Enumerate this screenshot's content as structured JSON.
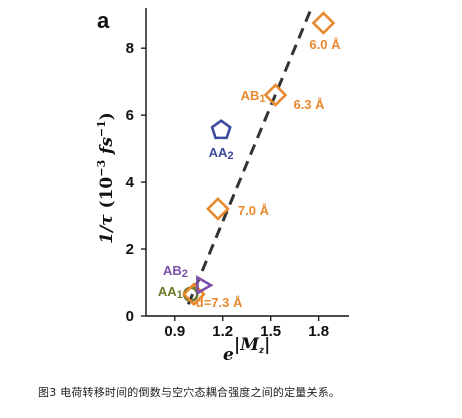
{
  "figure": {
    "panel_letter": "a",
    "caption": "图3 电荷转移时间的倒数与空穴态耦合强度之间的定量关系。"
  },
  "chart_data": {
    "type": "scatter",
    "xlabel": "e^|Mz|",
    "ylabel": "1/τ (10^-3 fs^-1)",
    "xlim": [
      0.72,
      1.99
    ],
    "ylim": [
      0,
      9.2
    ],
    "xticks": [
      "0.9",
      "1.2",
      "1.5",
      "1.8"
    ],
    "xtick_values": [
      0.9,
      1.2,
      1.5,
      1.8
    ],
    "yticks": [
      "0",
      "2",
      "4",
      "6",
      "8"
    ],
    "ytick_values": [
      0,
      2,
      4,
      6,
      8
    ],
    "grid": false,
    "legend": "none",
    "points": [
      {
        "label": "AA1",
        "sublabel": "d=7.3 Å",
        "x": 1.0,
        "y": 0.65,
        "marker": "circle",
        "color": "#6b7a2a"
      },
      {
        "label": "",
        "sublabel": "",
        "x": 1.02,
        "y": 0.65,
        "marker": "diamond",
        "color": "#e8892e"
      },
      {
        "label": "AB2",
        "sublabel": "",
        "x": 1.07,
        "y": 0.92,
        "marker": "triangle-right",
        "color": "#7b4fa8"
      },
      {
        "label": "",
        "sublabel": "7.0 Å",
        "x": 1.17,
        "y": 3.2,
        "marker": "diamond",
        "color": "#e8892e"
      },
      {
        "label": "AA2",
        "sublabel": "",
        "x": 1.19,
        "y": 5.55,
        "marker": "pentagon",
        "color": "#3b4a9e"
      },
      {
        "label": "AB1",
        "sublabel": "6.3 Å",
        "x": 1.53,
        "y": 6.6,
        "marker": "diamond",
        "color": "#e8892e"
      },
      {
        "label": "",
        "sublabel": "6.0 Å",
        "x": 1.83,
        "y": 8.75,
        "marker": "diamond",
        "color": "#e8892e"
      }
    ],
    "fit_line": {
      "x": [
        0.985,
        1.755
      ],
      "y": [
        0.35,
        9.2
      ],
      "style": "dashed",
      "color": "#333333"
    },
    "label_colors": {
      "AA1": "#6b7a2a",
      "AB2": "#7b4fa8",
      "AA2": "#3b4a9e",
      "AB1": "#e8892e",
      "distance": "#e8892e"
    }
  }
}
